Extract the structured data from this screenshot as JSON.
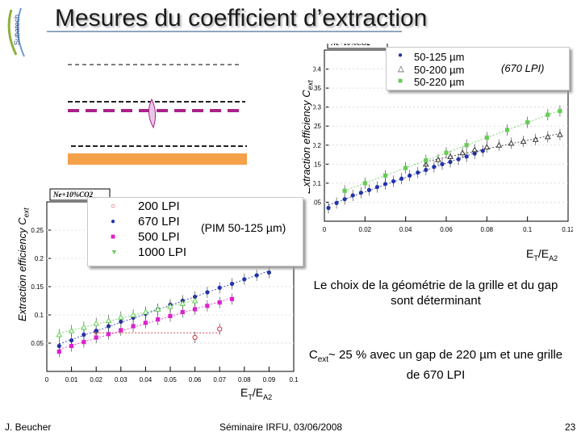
{
  "slide": {
    "title": "Mesures du coefficient d’extraction",
    "logo_text": "Subatech"
  },
  "right_chart": {
    "gas_label": "Ne+10%CO",
    "gas_sub": "2",
    "ylabel": "Extraction efficiency C",
    "ylabel_sub": "ext",
    "xlabel": "E",
    "xlabel_sub1": "T",
    "xlabel_mid": "/E",
    "xlabel_sub2": "A2",
    "legend": [
      "50-125 µm",
      "50-200 µm",
      "50-220 µm"
    ],
    "note": "(670 LPI)",
    "colors": [
      "#2233aa",
      "#333333",
      "#66cc55"
    ]
  },
  "left_chart": {
    "gas_label": "Ne+10%CO",
    "gas_sub": "2",
    "ylabel": "Extraction efficiency C",
    "ylabel_sub": "ext",
    "xlabel": "E",
    "xlabel_sub1": "T",
    "xlabel_mid": "/E",
    "xlabel_sub2": "A2",
    "legend": [
      "200 LPI",
      "670 LPI",
      "500 LPI",
      "1000 LPI"
    ],
    "note": "(PIM 50-125 µm)",
    "colors": [
      "#cc3344",
      "#2233aa",
      "#dd22cc",
      "#66cc55"
    ]
  },
  "text": {
    "choice": "Le choix de la géométrie de la grille et du gap sont déterminant",
    "cext_main": "C",
    "cext_sub": "ext",
    "cext_rest": "~ 25 % avec un gap de 220 µm et une grille de 670 LPI"
  },
  "footer": {
    "author": "J. Beucher",
    "event": "Séminaire IRFU, 03/06/2008",
    "page": "23"
  },
  "chart_data": [
    {
      "type": "scatter",
      "title": "",
      "annotation": "Ne+10%CO2",
      "xlabel": "ET/EA2",
      "ylabel": "Extraction efficiency Cext",
      "xlim": [
        0,
        0.12
      ],
      "ylim": [
        0,
        0.45
      ],
      "x_ticks": [
        "0",
        "0.02",
        "0.04",
        "0.06",
        "0.08",
        "0.1",
        "0.12"
      ],
      "y_ticks": [
        "0.05",
        "0.1",
        "0.15",
        "0.2",
        "0.25",
        "0.3",
        "0.35",
        "0.4"
      ],
      "series": [
        {
          "name": "50-125 µm",
          "marker": "circle",
          "color": "#2233aa",
          "x": [
            0.002,
            0.006,
            0.01,
            0.014,
            0.018,
            0.022,
            0.026,
            0.03,
            0.034,
            0.038,
            0.042,
            0.046,
            0.05,
            0.054,
            0.058,
            0.062,
            0.066,
            0.07,
            0.074,
            0.078
          ],
          "y": [
            0.035,
            0.048,
            0.058,
            0.068,
            0.075,
            0.082,
            0.09,
            0.098,
            0.105,
            0.112,
            0.12,
            0.128,
            0.135,
            0.143,
            0.15,
            0.156,
            0.163,
            0.17,
            0.178,
            0.185
          ]
        },
        {
          "name": "50-200 µm",
          "marker": "triangle",
          "color": "#333333",
          "x": [
            0.05,
            0.056,
            0.062,
            0.068,
            0.074,
            0.08,
            0.086,
            0.092,
            0.098,
            0.104,
            0.11,
            0.116
          ],
          "y": [
            0.15,
            0.162,
            0.17,
            0.18,
            0.188,
            0.195,
            0.2,
            0.205,
            0.21,
            0.215,
            0.222,
            0.228
          ]
        },
        {
          "name": "50-220 µm",
          "marker": "square",
          "color": "#66cc55",
          "x": [
            0.01,
            0.02,
            0.03,
            0.04,
            0.05,
            0.06,
            0.07,
            0.08,
            0.09,
            0.1,
            0.11,
            0.116
          ],
          "y": [
            0.08,
            0.1,
            0.12,
            0.14,
            0.16,
            0.18,
            0.2,
            0.22,
            0.24,
            0.26,
            0.28,
            0.29
          ]
        }
      ]
    },
    {
      "type": "scatter",
      "title": "",
      "annotation": "Ne+10%CO2",
      "xlabel": "ET/EA2",
      "ylabel": "Extraction efficiency Cext",
      "xlim": [
        0,
        0.1
      ],
      "ylim": [
        0,
        0.3
      ],
      "x_ticks": [
        "0",
        "0.01",
        "0.02",
        "0.03",
        "0.04",
        "0.05",
        "0.06",
        "0.07",
        "0.08",
        "0.09",
        "0.1"
      ],
      "y_ticks": [
        "0.05",
        "0.1",
        "0.15",
        "0.2",
        "0.25"
      ],
      "series": [
        {
          "name": "200 LPI",
          "marker": "open-circle",
          "color": "#cc3344",
          "x": [
            0.02,
            0.06,
            0.07
          ],
          "y": [
            0.07,
            0.06,
            0.075
          ]
        },
        {
          "name": "670 LPI",
          "marker": "circle",
          "color": "#2233aa",
          "x": [
            0.005,
            0.01,
            0.015,
            0.02,
            0.025,
            0.03,
            0.035,
            0.04,
            0.045,
            0.05,
            0.055,
            0.06,
            0.065,
            0.07,
            0.075,
            0.08,
            0.085,
            0.09
          ],
          "y": [
            0.045,
            0.055,
            0.065,
            0.072,
            0.08,
            0.088,
            0.095,
            0.102,
            0.11,
            0.118,
            0.125,
            0.132,
            0.14,
            0.148,
            0.155,
            0.163,
            0.17,
            0.175
          ]
        },
        {
          "name": "500 LPI",
          "marker": "square",
          "color": "#dd22cc",
          "x": [
            0.005,
            0.01,
            0.015,
            0.02,
            0.025,
            0.03,
            0.035,
            0.04,
            0.045,
            0.05,
            0.055,
            0.06,
            0.065,
            0.07,
            0.075
          ],
          "y": [
            0.035,
            0.045,
            0.052,
            0.06,
            0.066,
            0.073,
            0.08,
            0.086,
            0.092,
            0.098,
            0.105,
            0.11,
            0.116,
            0.122,
            0.128
          ]
        },
        {
          "name": "1000 LPI",
          "marker": "triangle",
          "color": "#66cc55",
          "x": [
            0.005,
            0.01,
            0.015,
            0.02,
            0.025,
            0.03,
            0.035,
            0.04,
            0.045,
            0.05,
            0.055,
            0.06
          ],
          "y": [
            0.065,
            0.072,
            0.078,
            0.085,
            0.09,
            0.096,
            0.1,
            0.105,
            0.11,
            0.115,
            0.12,
            0.125
          ]
        }
      ]
    }
  ]
}
